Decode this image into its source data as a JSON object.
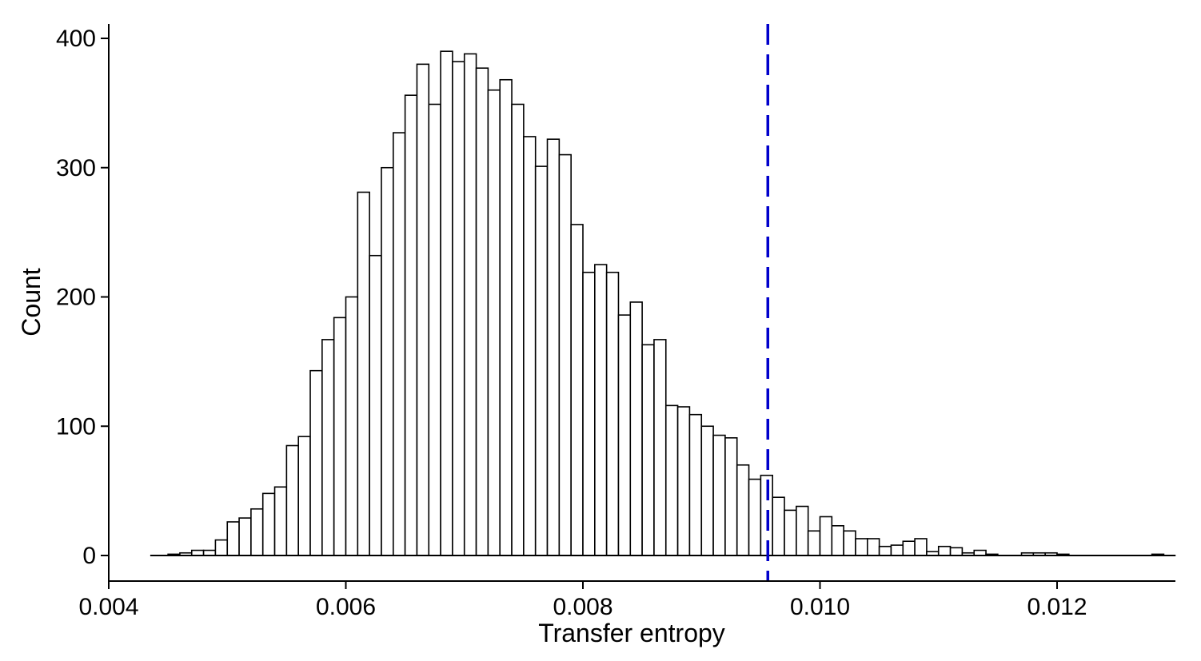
{
  "chart_data": {
    "type": "bar",
    "subtype": "histogram",
    "title": "",
    "xlabel": "Transfer entropy",
    "ylabel": "Count",
    "xlim": [
      0.004,
      0.013
    ],
    "ylim": [
      -20,
      410
    ],
    "xticks": [
      0.004,
      0.006,
      0.008,
      0.01,
      0.012
    ],
    "xtick_labels": [
      "0.004",
      "0.006",
      "0.008",
      "0.010",
      "0.012"
    ],
    "yticks": [
      0,
      100,
      200,
      300,
      400
    ],
    "ytick_labels": [
      "0",
      "100",
      "200",
      "300",
      "400"
    ],
    "bin_start": 0.0045,
    "bin_width": 0.0001,
    "counts": [
      1,
      2,
      4,
      4,
      12,
      26,
      29,
      36,
      48,
      53,
      85,
      92,
      143,
      167,
      184,
      200,
      281,
      232,
      300,
      327,
      356,
      380,
      349,
      390,
      382,
      388,
      377,
      360,
      368,
      349,
      324,
      301,
      322,
      310,
      256,
      219,
      225,
      219,
      186,
      196,
      163,
      167,
      116,
      115,
      109,
      100,
      93,
      91,
      70,
      59,
      62,
      45,
      35,
      38,
      19,
      30,
      23,
      19,
      13,
      13,
      7,
      8,
      11,
      13,
      3,
      7,
      6,
      2,
      4,
      1,
      0,
      0,
      2,
      2,
      2,
      1,
      0,
      0,
      0,
      0,
      0,
      0,
      0,
      1,
      0
    ],
    "reference_line": {
      "x": 0.00956,
      "color": "#0000cc",
      "style": "dashed"
    },
    "grid": false,
    "legend": "none",
    "bar_fill": "#ffffff",
    "bar_edge": "#000000"
  }
}
